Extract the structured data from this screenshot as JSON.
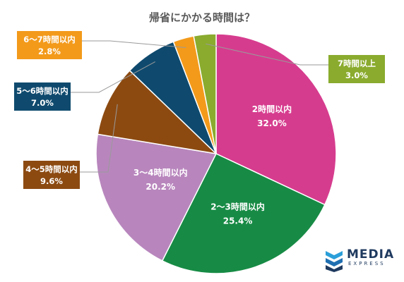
{
  "chart_data": {
    "type": "pie",
    "title": "帰省にかかる時間は？",
    "slices": [
      {
        "label": "2時間以内",
        "value": 32.0,
        "display": "32.0%",
        "color": "#d63c8e"
      },
      {
        "label": "2～3時間以内",
        "value": 25.4,
        "display": "25.4%",
        "color": "#178b45"
      },
      {
        "label": "3～4時間以内",
        "value": 20.2,
        "display": "20.2%",
        "color": "#b886bd"
      },
      {
        "label": "4～5時間以内",
        "value": 9.6,
        "display": "9.6%",
        "color": "#8c4a11"
      },
      {
        "label": "5～6時間以内",
        "value": 7.0,
        "display": "7.0%",
        "color": "#0f4a6e"
      },
      {
        "label": "6～7時間以内",
        "value": 2.8,
        "display": "2.8%",
        "color": "#f39a1b"
      },
      {
        "label": "7時間以上",
        "value": 3.0,
        "display": "3.0%",
        "color": "#8aab2e"
      }
    ],
    "start_angle_deg": 0,
    "direction": "clockwise",
    "legend": "none"
  },
  "logo": {
    "main": "MEDIA",
    "sub": "EXPRESS",
    "icon": "media-express-logo-icon"
  }
}
